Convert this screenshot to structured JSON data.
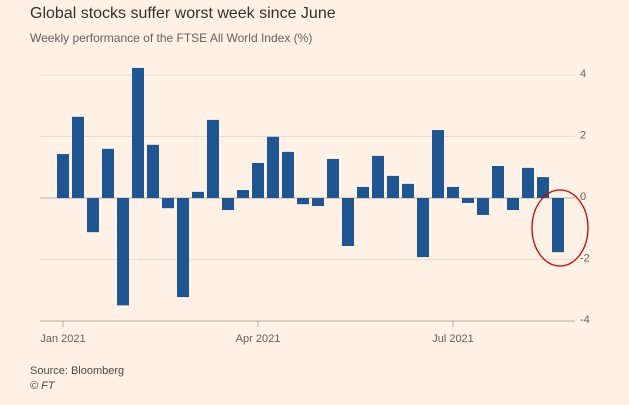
{
  "chart_data": {
    "type": "bar",
    "title": "Global stocks suffer worst week since June",
    "subtitle": "Weekly performance of the FTSE All World Index (%)",
    "source": "Source: Bloomberg",
    "credit": "© FT",
    "categories": [
      "Jan 2021",
      null,
      null,
      null,
      null,
      null,
      null,
      null,
      null,
      null,
      null,
      null,
      null,
      "Apr 2021",
      null,
      null,
      null,
      null,
      null,
      null,
      null,
      null,
      null,
      null,
      null,
      null,
      "Jul 2021",
      null,
      null,
      null,
      null,
      null,
      null,
      null
    ],
    "values": [
      1.43,
      2.64,
      -1.11,
      1.6,
      -3.49,
      4.23,
      1.73,
      -0.33,
      -3.22,
      0.2,
      2.54,
      -0.39,
      0.26,
      1.14,
      1.99,
      1.5,
      -0.2,
      -0.26,
      1.27,
      -1.56,
      0.36,
      1.37,
      0.72,
      0.46,
      -1.92,
      2.21,
      0.36,
      -0.16,
      -0.55,
      1.04,
      -0.39,
      0.98,
      0.68,
      -1.76
    ],
    "color": "#1f5591",
    "ylim": [
      -4.2,
      4.4
    ],
    "yticks": [
      -4,
      -2,
      0,
      2,
      4
    ],
    "grid": true
  }
}
